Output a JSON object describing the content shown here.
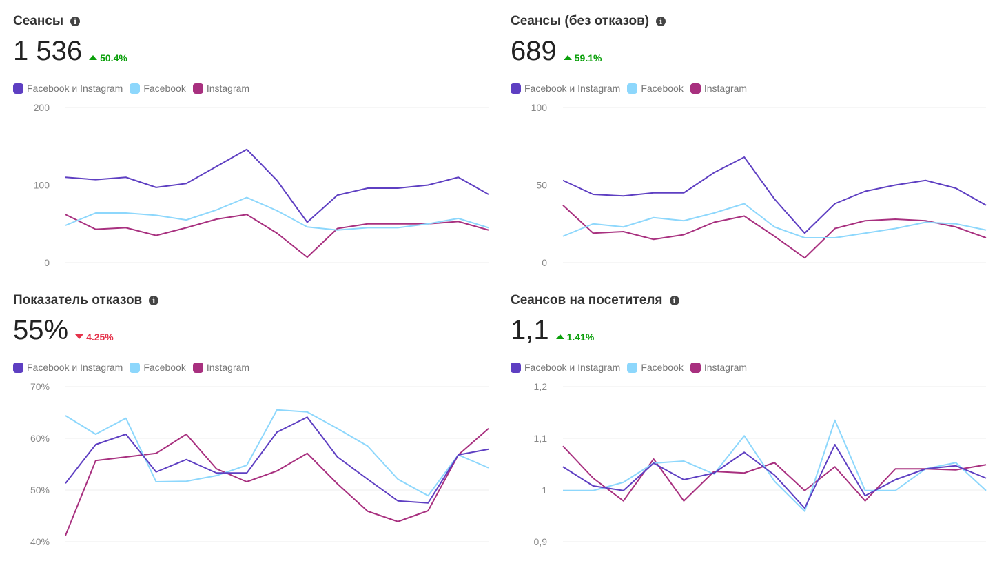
{
  "legend": [
    "Facebook и Instagram",
    "Facebook",
    "Instagram"
  ],
  "colors": [
    "#5e3fc2",
    "#8dd7fc",
    "#a8307f"
  ],
  "panels": [
    {
      "title": "Сеансы",
      "value": "1 536",
      "delta": "50.4%",
      "direction": "up"
    },
    {
      "title": "Сеансы (без отказов)",
      "value": "689",
      "delta": "59.1%",
      "direction": "up"
    },
    {
      "title": "Показатель отказов",
      "value": "55%",
      "delta": "4.25%",
      "direction": "down"
    },
    {
      "title": "Сеансов на посетителя",
      "value": "1,1",
      "delta": "1.41%",
      "direction": "up"
    }
  ],
  "chart_data": [
    {
      "type": "line",
      "title": "Сеансы",
      "ylim": [
        0,
        200
      ],
      "ticks": [
        {
          "v": 200,
          "label": "200"
        },
        {
          "v": 100,
          "label": "100"
        },
        {
          "v": 0,
          "label": "0"
        }
      ],
      "series": [
        {
          "name": "Facebook и Instagram",
          "values": [
            110,
            107,
            110,
            97,
            102,
            124,
            146,
            106,
            52,
            87,
            96,
            96,
            100,
            110,
            88
          ]
        },
        {
          "name": "Facebook",
          "values": [
            48,
            64,
            64,
            61,
            55,
            68,
            84,
            67,
            46,
            42,
            45,
            45,
            50,
            57,
            45
          ]
        },
        {
          "name": "Instagram",
          "values": [
            62,
            43,
            45,
            35,
            45,
            56,
            62,
            38,
            7,
            44,
            50,
            50,
            50,
            53,
            42
          ]
        }
      ]
    },
    {
      "type": "line",
      "title": "Сеансы (без отказов)",
      "ylim": [
        0,
        100
      ],
      "ticks": [
        {
          "v": 100,
          "label": "100"
        },
        {
          "v": 50,
          "label": "50"
        },
        {
          "v": 0,
          "label": "0"
        }
      ],
      "series": [
        {
          "name": "Facebook и Instagram",
          "values": [
            53,
            44,
            43,
            45,
            45,
            58,
            68,
            41,
            19,
            38,
            46,
            50,
            53,
            48,
            37
          ]
        },
        {
          "name": "Facebook",
          "values": [
            17,
            25,
            23,
            29,
            27,
            32,
            38,
            23,
            16,
            16,
            19,
            22,
            26,
            25,
            21
          ]
        },
        {
          "name": "Instagram",
          "values": [
            37,
            19,
            20,
            15,
            18,
            26,
            30,
            17,
            3,
            22,
            27,
            28,
            27,
            23,
            16
          ]
        }
      ]
    },
    {
      "type": "line",
      "title": "Показатель отказов",
      "ylim": [
        40,
        70
      ],
      "ticks": [
        {
          "v": 70,
          "label": "70%"
        },
        {
          "v": 60,
          "label": "60%"
        },
        {
          "v": 50,
          "label": "50%"
        },
        {
          "v": 40,
          "label": "40%"
        }
      ],
      "series": [
        {
          "name": "Facebook и Instagram",
          "values": [
            51.3,
            58.8,
            60.8,
            53.5,
            55.9,
            53.3,
            53.3,
            61.2,
            64.1,
            56.4,
            52.1,
            47.9,
            47.5,
            56.8,
            57.9
          ]
        },
        {
          "name": "Facebook",
          "values": [
            64.4,
            60.8,
            63.9,
            51.6,
            51.7,
            52.8,
            54.8,
            65.5,
            65.1,
            61.9,
            58.5,
            52.1,
            48.9,
            56.8,
            54.3
          ]
        },
        {
          "name": "Instagram",
          "values": [
            41.2,
            55.7,
            56.4,
            57.1,
            60.8,
            54.1,
            51.6,
            53.7,
            57.1,
            51.2,
            45.9,
            43.9,
            46,
            56.8,
            61.9
          ]
        }
      ]
    },
    {
      "type": "line",
      "title": "Сеансов на посетителя",
      "ylim": [
        0.9,
        1.2
      ],
      "ticks": [
        {
          "v": 1.2,
          "label": "1,2"
        },
        {
          "v": 1.1,
          "label": "1,1"
        },
        {
          "v": 1.0,
          "label": "1"
        },
        {
          "v": 0.9,
          "label": "0,9"
        }
      ],
      "series": [
        {
          "name": "Facebook и Instagram",
          "values": [
            1.045,
            1.008,
            0.999,
            1.052,
            1.02,
            1.033,
            1.073,
            1.029,
            0.965,
            1.088,
            0.989,
            1.02,
            1.041,
            1.047,
            1.023
          ]
        },
        {
          "name": "Facebook",
          "values": [
            0.999,
            0.999,
            1.015,
            1.052,
            1.056,
            1.031,
            1.105,
            1.017,
            0.959,
            1.135,
            0.999,
            0.999,
            1.041,
            1.053,
            0.999
          ]
        },
        {
          "name": "Instagram",
          "values": [
            1.085,
            1.023,
            0.979,
            1.06,
            0.979,
            1.036,
            1.033,
            1.053,
            0.999,
            1.045,
            0.979,
            1.041,
            1.041,
            1.039,
            1.049
          ]
        }
      ]
    }
  ]
}
